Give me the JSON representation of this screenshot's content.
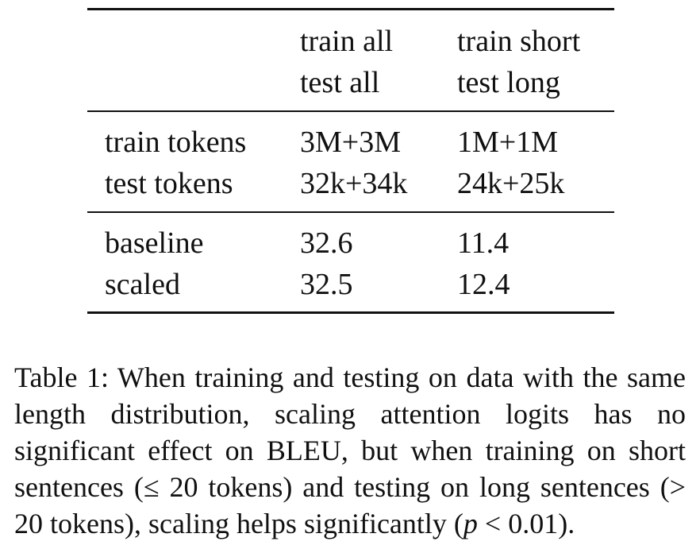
{
  "table": {
    "header": {
      "col1": {
        "line1": "train all",
        "line2": "test all"
      },
      "col2": {
        "line1": "train short",
        "line2": "test long"
      }
    },
    "section1": [
      {
        "label": "train tokens",
        "col1": "3M+3M",
        "col2": "1M+1M"
      },
      {
        "label": "test tokens",
        "col1": "32k+34k",
        "col2": "24k+25k"
      }
    ],
    "section2": [
      {
        "label": "baseline",
        "col1": "32.6",
        "col2": "11.4"
      },
      {
        "label": "scaled",
        "col1": "32.5",
        "col2": "12.4"
      }
    ]
  },
  "caption": {
    "prefix": "Table 1:  When training and testing on data with the same length distribution, scaling attention logits has no significant effect on BLEU, but when training on short sentences (≤ 20 tokens) and testing on long sentences (> 20 tokens), scaling helps significantly (",
    "p_symbol": "p",
    "suffix": " < 0.01)."
  }
}
